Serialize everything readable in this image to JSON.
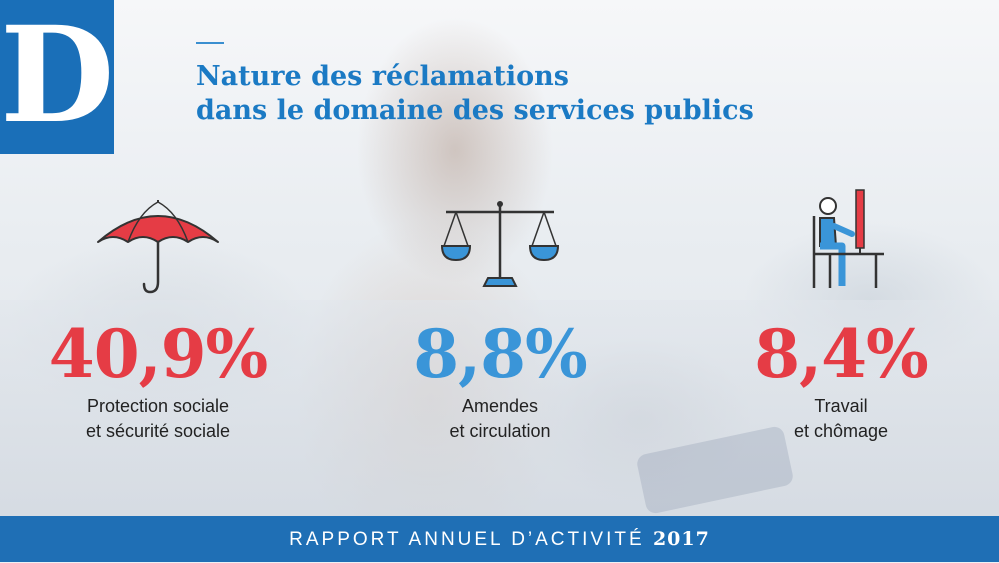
{
  "logo": {
    "letter": "D"
  },
  "title": {
    "line1": "Nature des réclamations",
    "line2": "dans le domaine des services publics"
  },
  "stats": [
    {
      "icon": "umbrella-icon",
      "percent": "40,9%",
      "color": "#e53c45",
      "label_line1": "Protection sociale",
      "label_line2": "et sécurité sociale"
    },
    {
      "icon": "scales-icon",
      "percent": "8,8%",
      "color": "#3a95d8",
      "label_line1": "Amendes",
      "label_line2": "et circulation"
    },
    {
      "icon": "desk-worker-icon",
      "percent": "8,4%",
      "color": "#e53c45",
      "label_line1": "Travail",
      "label_line2": "et chômage"
    }
  ],
  "footer": {
    "text": "RAPPORT ANNUEL D’ACTIVITÉ",
    "year": "2017"
  },
  "colors": {
    "brand_blue": "#1f6fb5",
    "accent_red": "#e53c45",
    "accent_blue": "#3a95d8"
  }
}
